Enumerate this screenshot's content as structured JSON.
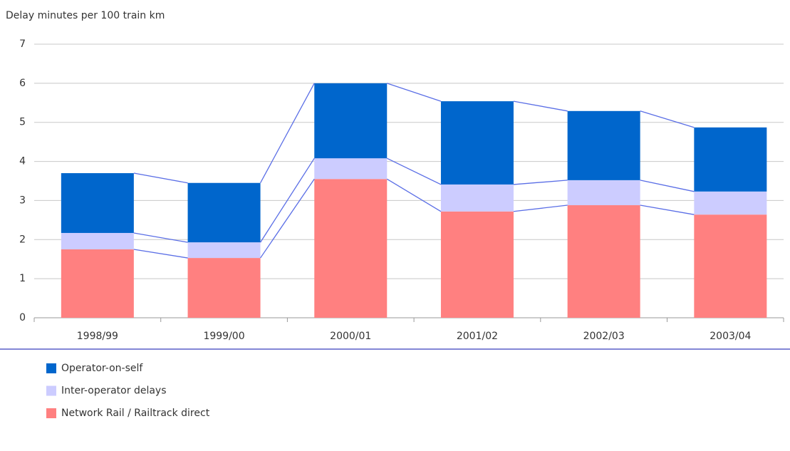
{
  "chart_data": {
    "type": "stacked_bar",
    "y_label": "Delay minutes per 100 train km",
    "categories": [
      "1998/99",
      "1999/00",
      "2000/01",
      "2001/02",
      "2002/03",
      "2003/04"
    ],
    "series": [
      {
        "name": "Network Rail / Railtrack direct",
        "color": "#ff8080",
        "values": [
          1.75,
          1.53,
          3.55,
          2.72,
          2.88,
          2.64
        ]
      },
      {
        "name": "Inter-operator delays",
        "color": "#ccccff",
        "values": [
          0.42,
          0.4,
          0.53,
          0.69,
          0.64,
          0.59
        ]
      },
      {
        "name": "Operator-on-self",
        "color": "#0066cc",
        "values": [
          1.53,
          1.52,
          1.92,
          2.13,
          1.77,
          1.64
        ]
      }
    ],
    "ylim": [
      0,
      7
    ],
    "yticks": [
      0,
      1,
      2,
      3,
      4,
      5,
      6,
      7
    ],
    "grid": true
  }
}
